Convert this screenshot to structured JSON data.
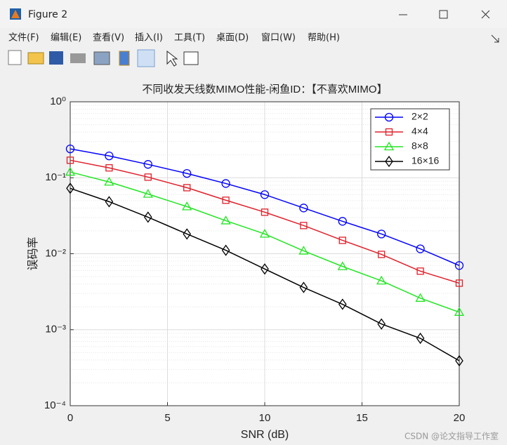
{
  "window": {
    "title": "Figure 2",
    "menu": [
      "文件(F)",
      "编辑(E)",
      "查看(V)",
      "插入(I)",
      "工具(T)",
      "桌面(D)",
      "窗口(W)",
      "帮助(H)"
    ]
  },
  "watermark": "CSDN @论文指导工作室",
  "chart_data": {
    "type": "line",
    "title": "不同收发天线数MIMO性能-闲鱼ID：【不喜欢MIMO】",
    "xlabel": "SNR (dB)",
    "ylabel": "误码率",
    "x": [
      0,
      2,
      4,
      6,
      8,
      10,
      12,
      14,
      16,
      18,
      20
    ],
    "xlim": [
      0,
      20
    ],
    "xticks": [
      0,
      5,
      10,
      15,
      20
    ],
    "ylim": [
      0.0001,
      1
    ],
    "yscale": "log",
    "yticks": [
      {
        "value": 0.0001,
        "label": "10⁻⁴"
      },
      {
        "value": 0.001,
        "label": "10⁻³"
      },
      {
        "value": 0.01,
        "label": "10⁻²"
      },
      {
        "value": 0.1,
        "label": "10⁻¹"
      },
      {
        "value": 1,
        "label": "10⁰"
      }
    ],
    "grid": true,
    "legend": "upper right",
    "series": [
      {
        "name": "2×2",
        "color": "#0000ff",
        "marker": "circle",
        "values": [
          0.24,
          0.194,
          0.15,
          0.114,
          0.084,
          0.06,
          0.04,
          0.0267,
          0.0182,
          0.0116,
          0.007
        ]
      },
      {
        "name": "4×4",
        "color": "#e0202a",
        "marker": "square",
        "values": [
          0.17,
          0.135,
          0.102,
          0.074,
          0.0506,
          0.0352,
          0.0235,
          0.015,
          0.0098,
          0.0059,
          0.0041
        ]
      },
      {
        "name": "8×8",
        "color": "#22e622",
        "marker": "triangle",
        "values": [
          0.119,
          0.088,
          0.061,
          0.0417,
          0.0272,
          0.0182,
          0.0109,
          0.0068,
          0.0044,
          0.0026,
          0.0017
        ]
      },
      {
        "name": "16×16",
        "color": "#000000",
        "marker": "diamond",
        "values": [
          0.0726,
          0.0484,
          0.0303,
          0.0182,
          0.0111,
          0.0063,
          0.0036,
          0.00216,
          0.00119,
          0.00077,
          0.00039
        ]
      }
    ]
  }
}
